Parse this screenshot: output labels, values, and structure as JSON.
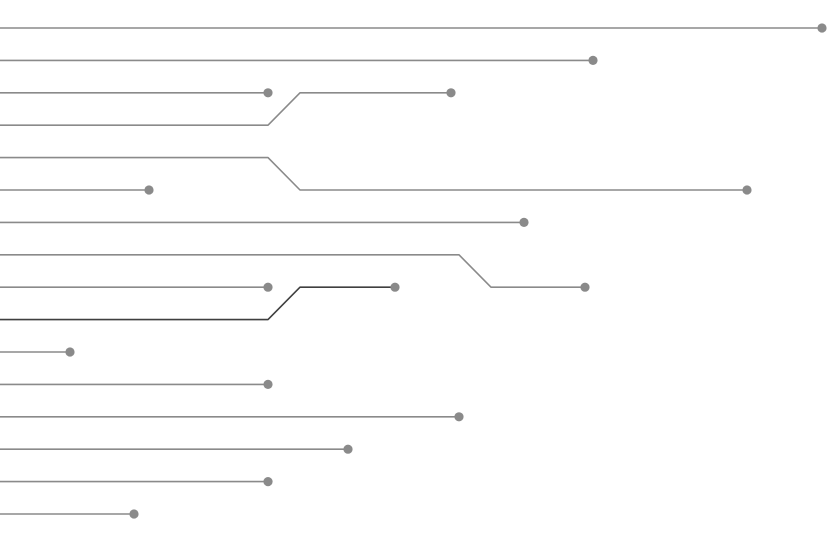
{
  "diagram": {
    "type": "circuit-trace-lines",
    "colors": {
      "background": "#ffffff",
      "trace": "#8a8a8a",
      "trace_dark": "#3f3f3f",
      "pad": "#8a8a8a"
    },
    "trace_count": 16,
    "traces": [
      {
        "row": 1,
        "end_row": 1,
        "length": 822,
        "jog_at": null
      },
      {
        "row": 2,
        "end_row": 2,
        "length": 593,
        "jog_at": null
      },
      {
        "row": 3,
        "end_row": 3,
        "length": 268,
        "jog_at": null
      },
      {
        "row": 4,
        "end_row": 3,
        "length": 451,
        "jog_at": 268
      },
      {
        "row": 5,
        "end_row": 6,
        "length": 747,
        "jog_at": 268
      },
      {
        "row": 6,
        "end_row": 6,
        "length": 149,
        "jog_at": null
      },
      {
        "row": 7,
        "end_row": 7,
        "length": 524,
        "jog_at": null
      },
      {
        "row": 8,
        "end_row": 9,
        "length": 585,
        "jog_at": 459
      },
      {
        "row": 9,
        "end_row": 9,
        "length": 268,
        "jog_at": null
      },
      {
        "row": 10,
        "end_row": 9,
        "length": 395,
        "jog_at": 268,
        "dark": true
      },
      {
        "row": 11,
        "end_row": 11,
        "length": 70,
        "jog_at": null
      },
      {
        "row": 12,
        "end_row": 12,
        "length": 268,
        "jog_at": null
      },
      {
        "row": 13,
        "end_row": 13,
        "length": 459,
        "jog_at": null
      },
      {
        "row": 14,
        "end_row": 14,
        "length": 348,
        "jog_at": null
      },
      {
        "row": 15,
        "end_row": 15,
        "length": 268,
        "jog_at": null
      },
      {
        "row": 16,
        "end_row": 16,
        "length": 134,
        "jog_at": null
      }
    ]
  }
}
